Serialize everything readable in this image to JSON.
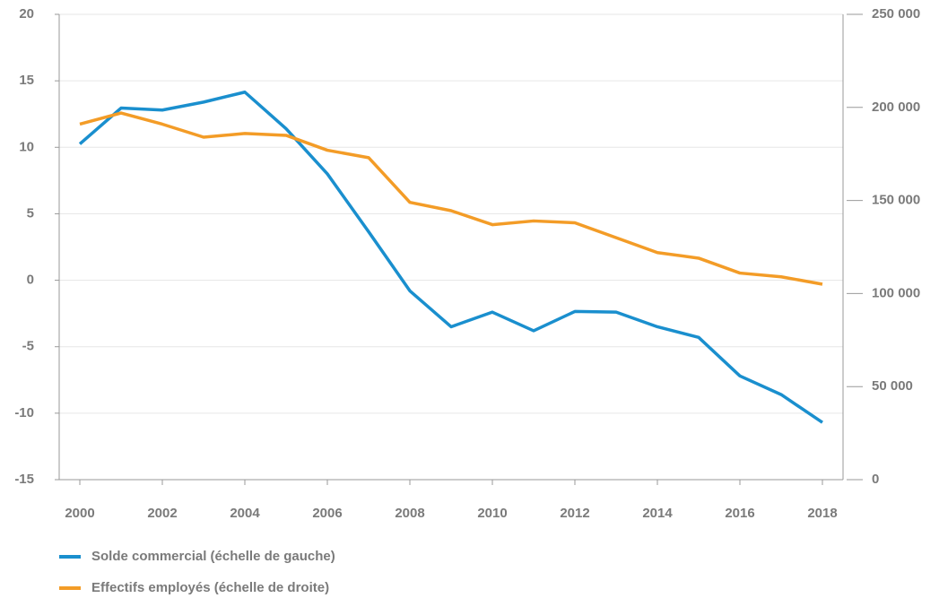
{
  "chart_data": {
    "type": "line",
    "categories": [
      "2000",
      null,
      "2002",
      null,
      "2004",
      null,
      "2006",
      null,
      "2008",
      null,
      "2010",
      null,
      "2012",
      null,
      "2014",
      null,
      "2016",
      null,
      "2018"
    ],
    "series": [
      {
        "name": "Solde commercial (échelle de gauche)",
        "color": "#1a8fce",
        "values": [
          10.25,
          12.95,
          12.8,
          13.4,
          14.15,
          11.4,
          8.0,
          3.65,
          -0.8,
          -3.5,
          -2.4,
          -3.8,
          -2.35,
          -2.4,
          -3.5,
          -4.3,
          -7.2,
          -8.6,
          -10.7
        ]
      },
      {
        "name": "Effectifs employés (échelle de droite)",
        "color": "#f39c27",
        "axis": "y2",
        "values": [
          191000,
          197000,
          191000,
          184000,
          186000,
          185000,
          177000,
          173000,
          149000,
          144500,
          137000,
          139000,
          138000,
          130000,
          122000,
          119000,
          111000,
          109000,
          105000
        ]
      }
    ],
    "ylim": [
      -15,
      20
    ],
    "yticks": [
      -15,
      -10,
      -5,
      0,
      5,
      10,
      15,
      20
    ],
    "y2lim": [
      0,
      250000
    ],
    "y2ticks": [
      0,
      {
        "value": 50000,
        "label": "50 000"
      },
      {
        "value": 100000,
        "label": "100 000"
      },
      {
        "value": 150000,
        "label": "150 000"
      },
      {
        "value": 200000,
        "label": "200 000"
      },
      {
        "value": 250000,
        "label": "250 000"
      }
    ],
    "grid": true
  }
}
